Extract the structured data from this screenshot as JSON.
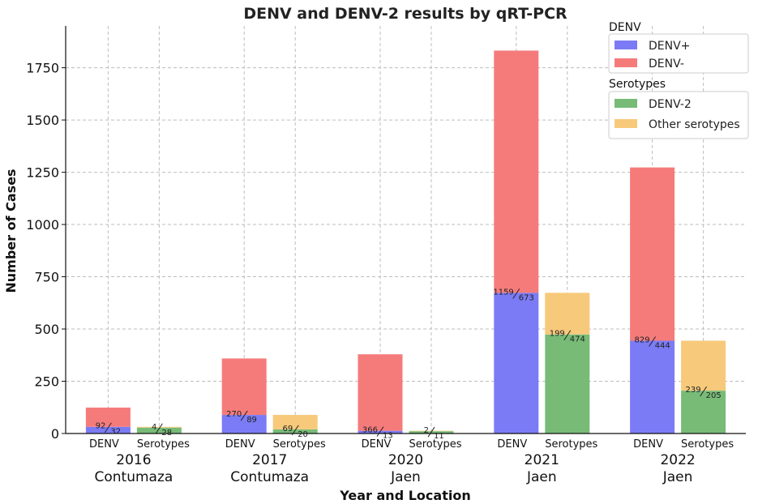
{
  "chart_data": {
    "type": "bar",
    "title": "DENV and DENV-2 results by qRT-PCR",
    "xlabel": "Year and Location",
    "ylabel": "Number of Cases",
    "ylim": [
      0,
      1950
    ],
    "yticks": [
      0,
      250,
      500,
      750,
      1000,
      1250,
      1500,
      1750
    ],
    "grid": true,
    "groups": [
      {
        "year": "2016",
        "location": "Contumaza",
        "denv": {
          "label": "DENV",
          "neg": 92,
          "pos": 32
        },
        "serotypes": {
          "label": "Serotypes",
          "other": 4,
          "denv2": 28
        }
      },
      {
        "year": "2017",
        "location": "Contumaza",
        "denv": {
          "label": "DENV",
          "neg": 270,
          "pos": 89
        },
        "serotypes": {
          "label": "Serotypes",
          "other": 69,
          "denv2": 20
        }
      },
      {
        "year": "2020",
        "location": "Jaen",
        "denv": {
          "label": "DENV",
          "neg": 366,
          "pos": 13
        },
        "serotypes": {
          "label": "Serotypes",
          "other": 2,
          "denv2": 11
        }
      },
      {
        "year": "2021",
        "location": "Jaen",
        "denv": {
          "label": "DENV",
          "neg": 1159,
          "pos": 673
        },
        "serotypes": {
          "label": "Serotypes",
          "other": 199,
          "denv2": 474
        }
      },
      {
        "year": "2022",
        "location": "Jaen",
        "denv": {
          "label": "DENV",
          "neg": 829,
          "pos": 444
        },
        "serotypes": {
          "label": "Serotypes",
          "other": 239,
          "denv2": 205
        }
      }
    ],
    "legends": [
      {
        "title": "DENV",
        "entries": [
          {
            "label": "DENV+",
            "color": "#7b7bf5"
          },
          {
            "label": "DENV-",
            "color": "#f57b7b"
          }
        ]
      },
      {
        "title": "Serotypes",
        "entries": [
          {
            "label": "DENV-2",
            "color": "#77bb77"
          },
          {
            "label": "Other serotypes",
            "color": "#f7c97a"
          }
        ]
      }
    ],
    "legend_position": "top-right"
  }
}
